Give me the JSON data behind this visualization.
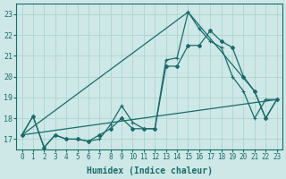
{
  "xlabel": "Humidex (Indice chaleur)",
  "background_color": "#cde8e6",
  "grid_color": "#aed4d0",
  "line_color": "#1a6b6b",
  "xlim": [
    -0.5,
    23.5
  ],
  "ylim": [
    16.5,
    23.5
  ],
  "xticks": [
    0,
    1,
    2,
    3,
    4,
    5,
    6,
    7,
    8,
    9,
    10,
    11,
    12,
    13,
    14,
    15,
    16,
    17,
    18,
    19,
    20,
    21,
    22,
    23
  ],
  "yticks": [
    17,
    18,
    19,
    20,
    21,
    22,
    23
  ],
  "line1_x": [
    0,
    1,
    2,
    3,
    4,
    5,
    6,
    7,
    8,
    9,
    10,
    11,
    12,
    13,
    14,
    15,
    16,
    17,
    18,
    19,
    20,
    21,
    22,
    23
  ],
  "line1_y": [
    17.2,
    18.1,
    16.6,
    17.2,
    17.0,
    17.0,
    16.9,
    17.0,
    17.7,
    18.6,
    17.8,
    17.5,
    17.5,
    20.8,
    20.9,
    23.1,
    22.3,
    21.7,
    21.4,
    20.0,
    19.3,
    18.0,
    18.9,
    18.9
  ],
  "line2_x": [
    0,
    1,
    2,
    3,
    4,
    5,
    6,
    7,
    8,
    9,
    10,
    11,
    12,
    13,
    14,
    15,
    16,
    17,
    18,
    19,
    20,
    21,
    22,
    23
  ],
  "line2_y": [
    17.2,
    18.1,
    16.6,
    17.2,
    17.0,
    17.0,
    16.9,
    17.2,
    17.5,
    18.0,
    17.5,
    17.5,
    17.5,
    20.5,
    20.5,
    21.5,
    21.5,
    22.2,
    21.7,
    21.4,
    20.0,
    19.3,
    18.0,
    18.9
  ],
  "line3_x": [
    0,
    15,
    21,
    22,
    23
  ],
  "line3_y": [
    17.2,
    23.1,
    19.3,
    18.0,
    18.9
  ],
  "line4_x": [
    0,
    23
  ],
  "line4_y": [
    17.2,
    18.9
  ]
}
